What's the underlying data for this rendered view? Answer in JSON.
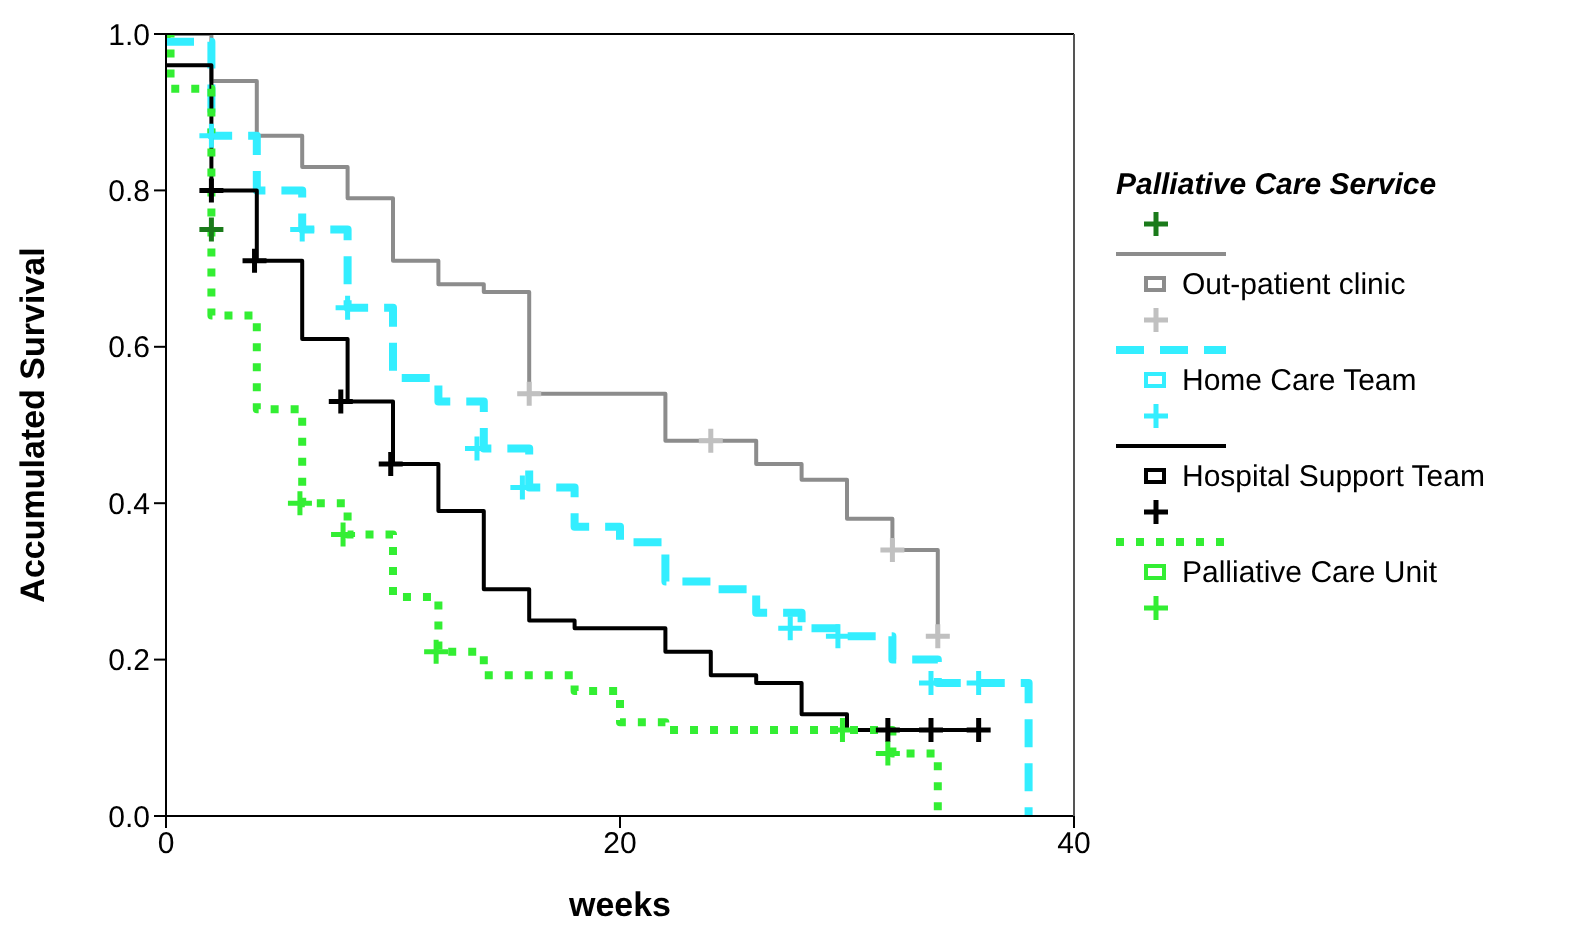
{
  "chart_data": {
    "type": "step",
    "xlabel": "weeks",
    "ylabel": "Accumulated Survival",
    "legend_title": "Palliative Care Service",
    "legend": "right",
    "grid": false,
    "marker": "none",
    "xlim": [
      0,
      40
    ],
    "xticks": [
      0,
      20,
      40
    ],
    "ylim": [
      0,
      1
    ],
    "yticks": [
      {
        "value": 0,
        "label": "0.0"
      },
      {
        "value": 0.2,
        "label": "0.2"
      },
      {
        "value": 0.4,
        "label": "0.4"
      },
      {
        "value": 0.6,
        "label": "0.6"
      },
      {
        "value": 0.8,
        "label": "0.8"
      },
      {
        "value": 1,
        "label": "1.0"
      }
    ],
    "series": [
      {
        "type": "scatter",
        "marker": "cross",
        "color": "#1a7a1a",
        "x": [
          2
        ],
        "values": [
          0.75
        ]
      },
      {
        "name": "Out-patient clinic",
        "color": "#8c8c8c",
        "line_style": "solid",
        "x": [
          0,
          2,
          4,
          6,
          8,
          10,
          12,
          14,
          16,
          22,
          26,
          28,
          30,
          32,
          34
        ],
        "values": [
          1.0,
          0.94,
          0.87,
          0.83,
          0.79,
          0.71,
          0.68,
          0.67,
          0.54,
          0.48,
          0.45,
          0.43,
          0.38,
          0.34,
          0.23
        ]
      },
      {
        "type": "scatter",
        "marker": "cross",
        "color": "#c0c0c0",
        "x": [
          16,
          24,
          32,
          34
        ],
        "values": [
          0.54,
          0.48,
          0.34,
          0.23
        ]
      },
      {
        "name": "Home Care Team",
        "color": "#33eeff",
        "line_style": "dashed",
        "x": [
          0,
          2,
          4,
          6,
          8,
          10,
          12,
          14,
          16,
          18,
          20,
          22,
          24,
          26,
          28,
          30,
          32,
          34,
          38
        ],
        "values": [
          0.99,
          0.87,
          0.8,
          0.75,
          0.65,
          0.56,
          0.53,
          0.47,
          0.42,
          0.37,
          0.35,
          0.3,
          0.29,
          0.26,
          0.24,
          0.23,
          0.2,
          0.17,
          0
        ]
      },
      {
        "type": "scatter",
        "marker": "cross",
        "color": "#33eeff",
        "x": [
          2,
          6,
          8,
          13.7,
          15.7,
          27.5,
          29.6,
          33.7,
          35.8
        ],
        "values": [
          0.87,
          0.75,
          0.65,
          0.47,
          0.42,
          0.24,
          0.23,
          0.17,
          0.17
        ]
      },
      {
        "name": "Hospital Support Team",
        "color": "#000000",
        "line_style": "solid",
        "x": [
          0,
          2,
          4,
          6,
          8,
          10,
          12,
          14,
          16,
          18,
          22,
          24,
          26,
          28,
          30,
          36
        ],
        "values": [
          0.96,
          0.8,
          0.71,
          0.61,
          0.53,
          0.45,
          0.39,
          0.29,
          0.25,
          0.24,
          0.21,
          0.18,
          0.17,
          0.13,
          0.11,
          0.11
        ]
      },
      {
        "type": "scatter",
        "marker": "cross",
        "color": "#000000",
        "x": [
          2,
          3.9,
          7.7,
          9.9,
          31.8,
          33.7,
          35.8
        ],
        "values": [
          0.8,
          0.71,
          0.53,
          0.45,
          0.11,
          0.11,
          0.11
        ]
      },
      {
        "name": "Palliative Care Unit",
        "color": "#33ee33",
        "line_style": "dotted",
        "x": [
          0,
          0.2,
          2,
          4,
          6,
          8,
          10,
          12,
          14,
          18,
          20,
          22,
          32,
          34
        ],
        "values": [
          1.0,
          0.93,
          0.64,
          0.52,
          0.4,
          0.36,
          0.28,
          0.21,
          0.18,
          0.16,
          0.12,
          0.11,
          0.08,
          0
        ]
      },
      {
        "type": "scatter",
        "marker": "cross",
        "color": "#33ee33",
        "x": [
          5.9,
          7.8,
          11.9,
          29.8,
          31.8
        ],
        "values": [
          0.4,
          0.36,
          0.21,
          0.11,
          0.08
        ]
      }
    ]
  }
}
